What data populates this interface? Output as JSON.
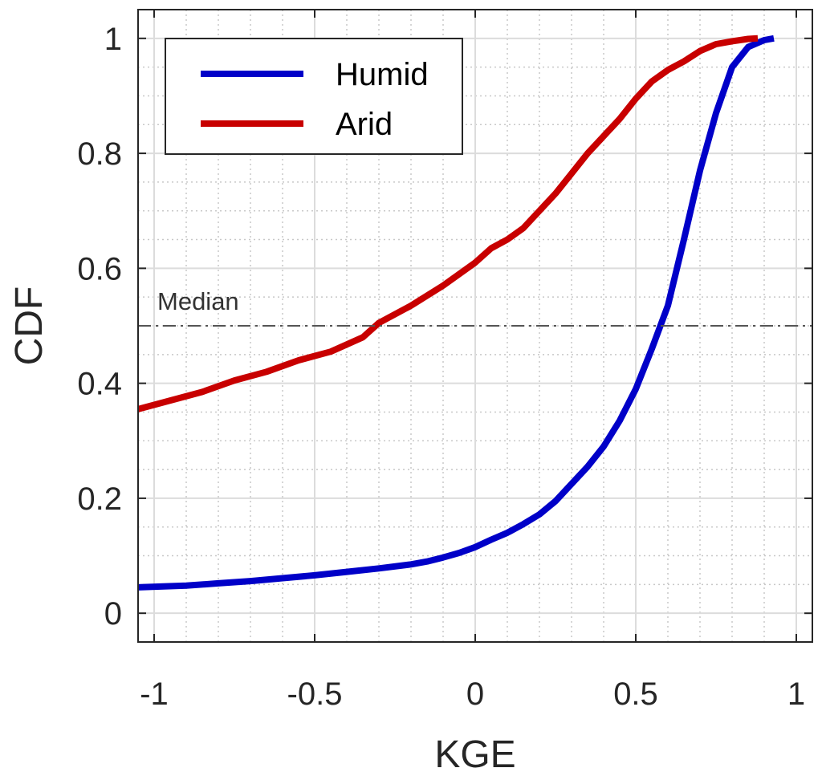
{
  "chart_data": {
    "type": "line",
    "title": "",
    "xlabel": "KGE",
    "ylabel": "CDF",
    "xlim": [
      -1.05,
      1.05
    ],
    "ylim": [
      -0.05,
      1.05
    ],
    "x_ticks": [
      -1,
      -0.5,
      0,
      0.5,
      1
    ],
    "x_tick_labels": [
      "-1",
      "-0.5",
      "0",
      "0.5",
      "1"
    ],
    "y_ticks": [
      0,
      0.2,
      0.4,
      0.6,
      0.8,
      1
    ],
    "y_tick_labels": [
      "0",
      "0.2",
      "0.4",
      "0.6",
      "0.8",
      "1"
    ],
    "grid": "major solid, minor dotted",
    "legend": {
      "placement": "top-left"
    },
    "series": [
      {
        "name": "Humid",
        "color": "#0000c8",
        "points": [
          [
            -1.05,
            0.045
          ],
          [
            -0.9,
            0.048
          ],
          [
            -0.8,
            0.052
          ],
          [
            -0.7,
            0.056
          ],
          [
            -0.6,
            0.061
          ],
          [
            -0.5,
            0.066
          ],
          [
            -0.4,
            0.072
          ],
          [
            -0.3,
            0.078
          ],
          [
            -0.2,
            0.085
          ],
          [
            -0.15,
            0.09
          ],
          [
            -0.1,
            0.097
          ],
          [
            -0.05,
            0.105
          ],
          [
            0,
            0.115
          ],
          [
            0.05,
            0.128
          ],
          [
            0.1,
            0.14
          ],
          [
            0.15,
            0.155
          ],
          [
            0.2,
            0.172
          ],
          [
            0.25,
            0.195
          ],
          [
            0.3,
            0.225
          ],
          [
            0.35,
            0.255
          ],
          [
            0.4,
            0.29
          ],
          [
            0.45,
            0.335
          ],
          [
            0.5,
            0.39
          ],
          [
            0.55,
            0.46
          ],
          [
            0.6,
            0.535
          ],
          [
            0.65,
            0.65
          ],
          [
            0.7,
            0.77
          ],
          [
            0.75,
            0.87
          ],
          [
            0.8,
            0.95
          ],
          [
            0.85,
            0.985
          ],
          [
            0.9,
            0.997
          ],
          [
            0.93,
            1.0
          ]
        ]
      },
      {
        "name": "Arid",
        "color": "#c80000",
        "points": [
          [
            -1.05,
            0.355
          ],
          [
            -0.95,
            0.37
          ],
          [
            -0.85,
            0.385
          ],
          [
            -0.75,
            0.405
          ],
          [
            -0.65,
            0.42
          ],
          [
            -0.55,
            0.44
          ],
          [
            -0.45,
            0.455
          ],
          [
            -0.35,
            0.48
          ],
          [
            -0.3,
            0.505
          ],
          [
            -0.2,
            0.535
          ],
          [
            -0.1,
            0.57
          ],
          [
            0,
            0.61
          ],
          [
            0.05,
            0.635
          ],
          [
            0.1,
            0.65
          ],
          [
            0.15,
            0.67
          ],
          [
            0.2,
            0.7
          ],
          [
            0.25,
            0.73
          ],
          [
            0.3,
            0.765
          ],
          [
            0.35,
            0.8
          ],
          [
            0.4,
            0.83
          ],
          [
            0.45,
            0.86
          ],
          [
            0.5,
            0.895
          ],
          [
            0.55,
            0.925
          ],
          [
            0.6,
            0.945
          ],
          [
            0.65,
            0.96
          ],
          [
            0.7,
            0.978
          ],
          [
            0.75,
            0.99
          ],
          [
            0.8,
            0.995
          ],
          [
            0.85,
            0.999
          ],
          [
            0.88,
            1.0
          ]
        ]
      }
    ],
    "reference_line": {
      "y": 0.5,
      "label": "Median",
      "style": "dash-dot"
    }
  }
}
